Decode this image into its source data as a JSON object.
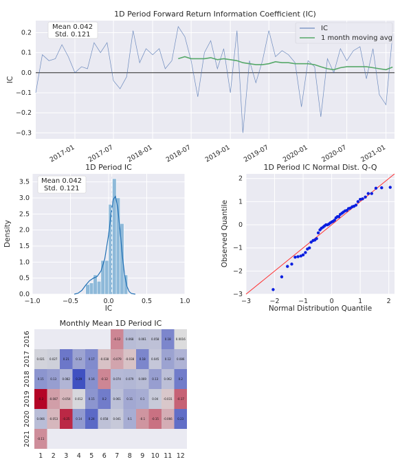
{
  "chart_data": [
    {
      "type": "line",
      "title": "1D Period Forward Return Information Coefficient (IC)",
      "ylabel": "IC",
      "xlabel": "",
      "x_range": [
        "2016-07-01",
        "2021-02-10"
      ],
      "ylim": [
        -0.33,
        0.26
      ],
      "yticks": [
        -0.3,
        -0.2,
        -0.1,
        0.0,
        0.1,
        0.2
      ],
      "ytick_labels": [
        "−0.3",
        "−0.2",
        "−0.1",
        "0.0",
        "0.1",
        "0.2"
      ],
      "xticks": [
        "2017-01-01",
        "2017-07-01",
        "2018-01-01",
        "2018-07-01",
        "2019-01-01",
        "2019-07-01",
        "2020-01-01",
        "2020-07-01",
        "2021-01-01"
      ],
      "xtick_labels": [
        "2017-01",
        "2017-07",
        "2018-01",
        "2018-07",
        "2019-01",
        "2019-07",
        "2020-01",
        "2020-07",
        "2021-01"
      ],
      "grid": true,
      "legend_position": "top-right",
      "stats_text": [
        "Mean 0.042",
        "Std. 0.121"
      ],
      "series": [
        {
          "name": "IC",
          "color": "#4c72b0",
          "x": [
            "2016-07-01",
            "2016-08-01",
            "2016-09-01",
            "2016-10-01",
            "2016-11-01",
            "2016-12-01",
            "2017-01-01",
            "2017-02-01",
            "2017-03-01",
            "2017-04-01",
            "2017-05-01",
            "2017-06-01",
            "2017-07-01",
            "2017-08-01",
            "2017-09-01",
            "2017-10-01",
            "2017-11-01",
            "2017-12-01",
            "2018-01-01",
            "2018-02-01",
            "2018-03-01",
            "2018-04-01",
            "2018-05-01",
            "2018-06-01",
            "2018-07-01",
            "2018-08-01",
            "2018-09-01",
            "2018-10-01",
            "2018-11-01",
            "2018-12-01",
            "2019-01-01",
            "2019-02-01",
            "2019-03-01",
            "2019-04-01",
            "2019-05-01",
            "2019-06-01",
            "2019-07-01",
            "2019-08-01",
            "2019-09-01",
            "2019-10-01",
            "2019-11-01",
            "2019-12-01",
            "2020-01-01",
            "2020-02-01",
            "2020-03-01",
            "2020-04-01",
            "2020-05-01",
            "2020-06-01",
            "2020-07-01",
            "2020-08-01",
            "2020-09-01",
            "2020-10-01",
            "2020-11-01",
            "2020-12-01",
            "2021-01-01",
            "2021-02-01"
          ],
          "values": [
            -0.1,
            0.09,
            0.06,
            0.07,
            0.14,
            0.08,
            0.0,
            0.03,
            0.02,
            0.15,
            0.1,
            0.15,
            -0.04,
            -0.08,
            -0.02,
            0.21,
            0.05,
            0.12,
            0.09,
            0.12,
            0.02,
            0.06,
            0.23,
            0.18,
            0.06,
            -0.12,
            0.1,
            0.16,
            0.02,
            0.12,
            -0.1,
            0.21,
            -0.3,
            0.06,
            -0.05,
            0.06,
            0.21,
            0.08,
            0.11,
            0.09,
            0.05,
            -0.17,
            0.06,
            0.03,
            -0.22,
            0.07,
            0.0,
            0.12,
            0.06,
            0.11,
            0.13,
            -0.03,
            0.12,
            -0.11,
            -0.16,
            0.19
          ]
        },
        {
          "name": "1 month moving avg",
          "color": "#55a868",
          "x": [
            "2018-05-01",
            "2018-06-01",
            "2018-07-01",
            "2018-08-01",
            "2018-09-01",
            "2018-10-01",
            "2018-11-01",
            "2018-12-01",
            "2019-01-01",
            "2019-02-01",
            "2019-03-01",
            "2019-04-01",
            "2019-05-01",
            "2019-06-01",
            "2019-07-01",
            "2019-08-01",
            "2019-09-01",
            "2019-10-01",
            "2019-11-01",
            "2019-12-01",
            "2020-01-01",
            "2020-02-01",
            "2020-03-01",
            "2020-04-01",
            "2020-05-01",
            "2020-06-01",
            "2020-07-01",
            "2020-08-01",
            "2020-09-01",
            "2020-10-01",
            "2020-11-01",
            "2020-12-01",
            "2021-01-01",
            "2021-02-01"
          ],
          "values": [
            0.07,
            0.08,
            0.07,
            0.07,
            0.07,
            0.075,
            0.065,
            0.07,
            0.065,
            0.06,
            0.05,
            0.045,
            0.04,
            0.04,
            0.045,
            0.055,
            0.05,
            0.05,
            0.045,
            0.045,
            0.045,
            0.04,
            0.03,
            0.02,
            0.015,
            0.025,
            0.03,
            0.03,
            0.03,
            0.03,
            0.025,
            0.02,
            0.015,
            0.028
          ]
        }
      ]
    },
    {
      "type": "histogram",
      "title": "1D Period IC",
      "xlabel": "IC",
      "ylabel": "Density",
      "xlim": [
        -1.0,
        1.0
      ],
      "ylim": [
        0,
        3.75
      ],
      "xticks": [
        -1.0,
        -0.5,
        0.0,
        0.5,
        1.0
      ],
      "xtick_labels": [
        "−1.0",
        "−0.5",
        "0.0",
        "0.5",
        "1.0"
      ],
      "yticks": [
        0.0,
        0.5,
        1.0,
        1.5,
        2.0,
        2.5,
        3.0,
        3.5
      ],
      "ytick_labels": [
        "0.0",
        "0.5",
        "1.0",
        "1.5",
        "2.0",
        "2.5",
        "3.0",
        "3.5"
      ],
      "mean_line": 0.042,
      "stats_text": [
        "Mean 0.042",
        "Std. 0.121"
      ],
      "bins": [
        {
          "x0": -0.3,
          "x1": -0.25,
          "density": 0.3
        },
        {
          "x0": -0.25,
          "x1": -0.2,
          "density": 0.35
        },
        {
          "x0": -0.2,
          "x1": -0.15,
          "density": 0.6
        },
        {
          "x0": -0.15,
          "x1": -0.1,
          "density": 0.4
        },
        {
          "x0": -0.1,
          "x1": -0.05,
          "density": 1.05
        },
        {
          "x0": -0.05,
          "x1": 0.0,
          "density": 1.05
        },
        {
          "x0": 0.0,
          "x1": 0.05,
          "density": 2.8
        },
        {
          "x0": 0.05,
          "x1": 0.1,
          "density": 3.6
        },
        {
          "x0": 0.1,
          "x1": 0.15,
          "density": 3.0
        },
        {
          "x0": 0.15,
          "x1": 0.2,
          "density": 2.2
        },
        {
          "x0": 0.2,
          "x1": 0.25,
          "density": 0.6
        }
      ],
      "kde": {
        "x": [
          -0.45,
          -0.4,
          -0.35,
          -0.3,
          -0.25,
          -0.2,
          -0.15,
          -0.1,
          -0.05,
          0.0,
          0.03,
          0.06,
          0.09,
          0.12,
          0.15,
          0.18,
          0.21,
          0.24,
          0.27,
          0.3,
          0.35
        ],
        "y": [
          0.0,
          0.03,
          0.12,
          0.28,
          0.42,
          0.5,
          0.55,
          0.72,
          1.1,
          1.85,
          2.45,
          2.95,
          3.05,
          2.7,
          2.0,
          1.2,
          0.6,
          0.25,
          0.08,
          0.02,
          0.0
        ]
      }
    },
    {
      "type": "scatter",
      "title": "1D Period IC Normal Dist. Q-Q",
      "xlabel": "Normal Distribution Quantile",
      "ylabel": "Observed Quantile",
      "xlim": [
        -3,
        2.2
      ],
      "ylim": [
        -3,
        2.2
      ],
      "xticks": [
        -3,
        -2,
        -1,
        0,
        1,
        2
      ],
      "xtick_labels": [
        "−3",
        "−2",
        "−1",
        "0",
        "1",
        "2"
      ],
      "yticks": [
        -3,
        -2,
        -1,
        0,
        1,
        2
      ],
      "ytick_labels": [
        "−3",
        "−2",
        "−1",
        "0",
        "1",
        "2"
      ],
      "reference_line": [
        [
          -3,
          -3
        ],
        [
          2.2,
          2.2
        ]
      ],
      "points": [
        [
          -2.05,
          -2.8
        ],
        [
          -1.75,
          -2.25
        ],
        [
          -1.55,
          -1.8
        ],
        [
          -1.4,
          -1.7
        ],
        [
          -1.28,
          -1.4
        ],
        [
          -1.18,
          -1.38
        ],
        [
          -1.08,
          -1.35
        ],
        [
          -1.0,
          -1.3
        ],
        [
          -0.92,
          -1.2
        ],
        [
          -0.85,
          -1.05
        ],
        [
          -0.78,
          -1.0
        ],
        [
          -0.72,
          -0.75
        ],
        [
          -0.65,
          -0.68
        ],
        [
          -0.59,
          -0.66
        ],
        [
          -0.53,
          -0.6
        ],
        [
          -0.47,
          -0.35
        ],
        [
          -0.41,
          -0.22
        ],
        [
          -0.36,
          -0.15
        ],
        [
          -0.3,
          -0.1
        ],
        [
          -0.25,
          -0.05
        ],
        [
          -0.2,
          0.0
        ],
        [
          -0.15,
          0.0
        ],
        [
          -0.1,
          0.03
        ],
        [
          -0.05,
          0.08
        ],
        [
          0.0,
          0.12
        ],
        [
          0.05,
          0.15
        ],
        [
          0.1,
          0.2
        ],
        [
          0.15,
          0.3
        ],
        [
          0.2,
          0.35
        ],
        [
          0.25,
          0.35
        ],
        [
          0.3,
          0.45
        ],
        [
          0.36,
          0.5
        ],
        [
          0.41,
          0.55
        ],
        [
          0.47,
          0.6
        ],
        [
          0.53,
          0.62
        ],
        [
          0.59,
          0.7
        ],
        [
          0.65,
          0.72
        ],
        [
          0.72,
          0.78
        ],
        [
          0.78,
          0.8
        ],
        [
          0.85,
          0.85
        ],
        [
          0.92,
          1.0
        ],
        [
          1.0,
          1.1
        ],
        [
          1.08,
          1.12
        ],
        [
          1.18,
          1.2
        ],
        [
          1.28,
          1.35
        ],
        [
          1.4,
          1.35
        ],
        [
          1.55,
          1.58
        ],
        [
          1.75,
          1.6
        ],
        [
          2.05,
          1.62
        ]
      ]
    },
    {
      "type": "heatmap",
      "title": "Monthly Mean 1D Period IC",
      "rows": [
        "2016",
        "2017",
        "2018",
        "2019",
        "2020",
        "2021"
      ],
      "columns": [
        "1",
        "2",
        "3",
        "4",
        "5",
        "6",
        "7",
        "8",
        "9",
        "10",
        "11",
        "12"
      ],
      "values": [
        [
          null,
          null,
          null,
          null,
          null,
          null,
          -0.12,
          0.068,
          0.061,
          0.058,
          0.18,
          0.0016
        ],
        [
          0.021,
          0.027,
          0.21,
          0.12,
          0.17,
          -0.038,
          -0.079,
          -0.038,
          0.18,
          0.045,
          0.12,
          0.086
        ],
        [
          0.15,
          0.13,
          0.082,
          0.29,
          0.16,
          -0.12,
          0.074,
          0.079,
          0.069,
          0.13,
          0.062,
          0.2
        ],
        [
          -0.3,
          -0.087,
          -0.054,
          0.012,
          0.15,
          0.2,
          0.061,
          0.11,
          0.1,
          0.04,
          -0.031,
          -0.17
        ],
        [
          0.066,
          -0.053,
          -0.25,
          0.14,
          0.24,
          0.058,
          0.041,
          0.1,
          -0.1,
          -0.15,
          -0.066,
          0.23
        ],
        [
          -0.11,
          null,
          null,
          null,
          null,
          null,
          null,
          null,
          null,
          null,
          null,
          null
        ]
      ],
      "value_labels": [
        [
          "",
          "",
          "",
          "",
          "",
          "",
          "-0.12",
          "0.068",
          "0.061",
          "0.058",
          "0.18",
          "0.0016"
        ],
        [
          "0.021",
          "0.027",
          "0.21",
          "0.12",
          "0.17",
          "-0.038",
          "-0.079",
          "-0.038",
          "0.18",
          "0.045",
          "0.12",
          "0.086"
        ],
        [
          "0.15",
          "0.13",
          "0.082",
          "0.29",
          "0.16",
          "-0.12",
          "0.074",
          "0.079",
          "0.069",
          "0.13",
          "0.062",
          "0.2"
        ],
        [
          "-0.3",
          "-0.087",
          "-0.054",
          "0.012",
          "0.15",
          "0.2",
          "0.061",
          "0.11",
          "0.1",
          "0.04",
          "-0.031",
          "-0.17"
        ],
        [
          "0.066",
          "-0.053",
          "-0.25",
          "0.14",
          "0.24",
          "0.058",
          "0.041",
          "0.1",
          "-0.1",
          "-0.15",
          "-0.066",
          "0.23"
        ],
        [
          "-0.11",
          "",
          "",
          "",
          "",
          "",
          "",
          "",
          "",
          "",
          "",
          ""
        ]
      ],
      "colormap": "coolwarm_r",
      "vrange": [
        -0.3,
        0.3
      ]
    }
  ]
}
